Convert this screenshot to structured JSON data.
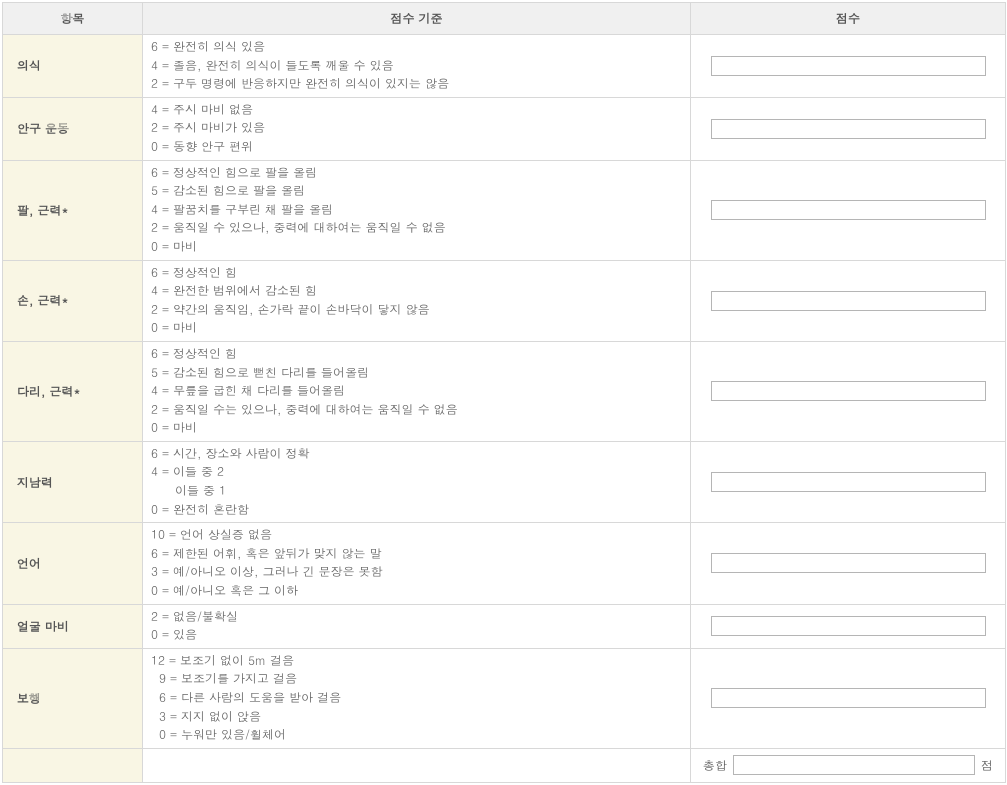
{
  "table": {
    "headers": {
      "item": "항목",
      "criteria": "점수 기준",
      "score": "점수"
    },
    "rows": [
      {
        "item": "의식",
        "criteria": "6 = 완전히 의식 있음\n4 = 졸음, 완전히 의식이 들도록 깨울 수 있음\n2 = 구두 명령에 반응하지만 완전히 의식이 있지는 않음"
      },
      {
        "item": "안구 운동",
        "criteria": "4 = 주시 마비 없음\n2 = 주시 마비가 있음\n0 = 동향 안구 편위"
      },
      {
        "item": "팔, 근력*",
        "criteria": "6 = 정상적인 힘으로 팔을 올림\n5 = 감소된 힘으로 팔을 올림\n4 = 팔꿈치를 구부린 채 팔을 올림\n2 = 움직일 수 있으나, 중력에 대하여는 움직일 수 없음\n0 = 마비"
      },
      {
        "item": "손, 근력*",
        "criteria": "6 = 정상적인 힘\n4 = 완전한 범위에서 감소된 힘\n2 = 약간의 움직임, 손가락 끝이 손바닥이 닿지 않음\n0 = 마비"
      },
      {
        "item": "다리, 근력*",
        "criteria": "6 = 정상적인 힘\n5 = 감소된 힘으로 뻗친 다리를 들어올림\n4 = 무릎을 굽힌 채 다리를 들어올림\n2 = 움직일 수는 있으나, 중력에 대하여는 움직일 수 없음\n0 = 마비"
      },
      {
        "item": "지남력",
        "criteria": "6 = 시간, 장소와 사람이 정확\n4 = 이들 중 2\n      이들 중 1\n0 = 완전히 혼란함"
      },
      {
        "item": "언어",
        "criteria": "10 = 언어 상실증 없음\n6 = 제한된 어휘, 혹은 앞뒤가 맞지 않는 말\n3 = 예/아니오 이상, 그러나 긴 문장은 못함\n0 = 예/아니오 혹은 그 이하"
      },
      {
        "item": "얼굴 마비",
        "criteria": "2 = 없음/불확실\n0 = 있음"
      },
      {
        "item": "보행",
        "criteria": "12 = 보조기 없이 5m 걸음\n  9 = 보조기를 가지고 걸음\n  6 = 다른 사람의 도움을 받아 걸음\n  3 = 지지 없이 앉음\n  0 = 누워만 있음/휠체어"
      }
    ],
    "total": {
      "label": "총합",
      "unit": "점"
    }
  }
}
